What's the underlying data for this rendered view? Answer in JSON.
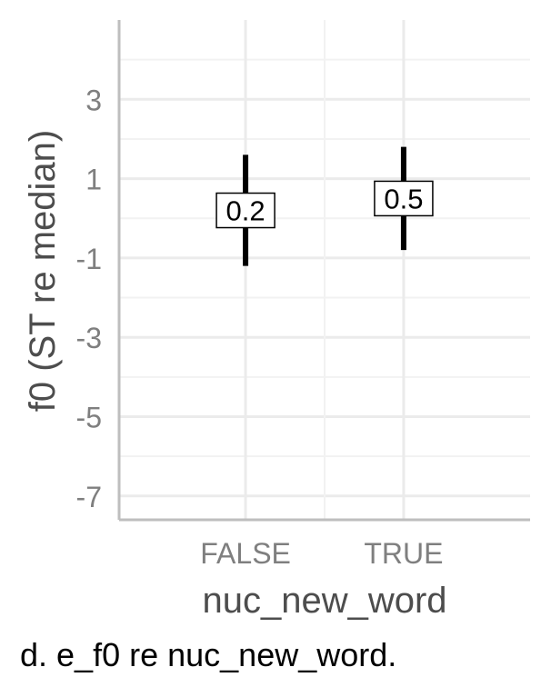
{
  "chart_data": {
    "type": "errorbar",
    "xlabel": "nuc_new_word",
    "ylabel": "f0 (ST re median)",
    "categories": [
      "FALSE",
      "TRUE"
    ],
    "values": [
      0.2,
      0.5
    ],
    "value_labels": [
      "0.2",
      "0.5"
    ],
    "lower": [
      -1.2,
      -0.8
    ],
    "upper": [
      1.6,
      1.8
    ],
    "ylim": [
      -7.6,
      5.0
    ],
    "yticks": [
      3,
      1,
      -1,
      -3,
      -5,
      -7
    ],
    "ytick_labels": [
      "3",
      "1",
      "-1",
      "-3",
      "-5",
      "-7"
    ],
    "grid": true,
    "colors": {
      "bar": "#000000",
      "grid": "#ebebeb",
      "axis": "#bebebe",
      "tick_text": "#7f7f7f",
      "axis_title": "#4d4d4d"
    }
  },
  "caption": "d.  e_f0 re nuc_new_word."
}
